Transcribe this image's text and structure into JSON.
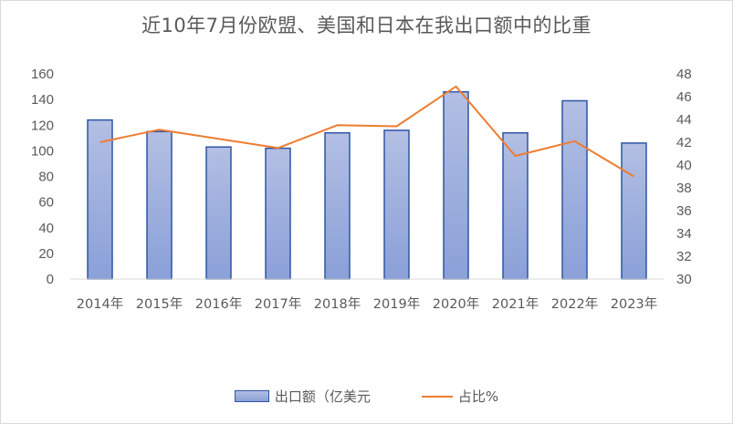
{
  "chart_data": {
    "type": "bar+line",
    "title": "近10年7月份欧盟、美国和日本在我出口额中的比重",
    "categories": [
      "2014年",
      "2015年",
      "2016年",
      "2017年",
      "2018年",
      "2019年",
      "2020年",
      "2021年",
      "2022年",
      "2023年"
    ],
    "series": [
      {
        "name": "出口额（亿美元",
        "type": "bar",
        "axis": "left",
        "values": [
          124,
          115,
          103,
          102,
          114,
          116,
          146,
          114,
          139,
          106
        ],
        "color": "#8aa0d8",
        "border_color": "#2f55a4"
      },
      {
        "name": "占比%",
        "type": "line",
        "axis": "right",
        "values": [
          42.0,
          43.1,
          42.3,
          41.5,
          43.5,
          43.4,
          46.9,
          40.8,
          42.1,
          39.0
        ],
        "color": "#ed7d31"
      }
    ],
    "y_left": {
      "min": 0,
      "max": 160,
      "step": 20,
      "ticks": [
        "0",
        "20",
        "40",
        "60",
        "80",
        "100",
        "120",
        "140",
        "160"
      ]
    },
    "y_right": {
      "min": 30,
      "max": 48,
      "step": 2,
      "ticks": [
        "30",
        "32",
        "34",
        "36",
        "38",
        "40",
        "42",
        "44",
        "46",
        "48"
      ]
    },
    "grid": false,
    "legend_position": "bottom"
  }
}
